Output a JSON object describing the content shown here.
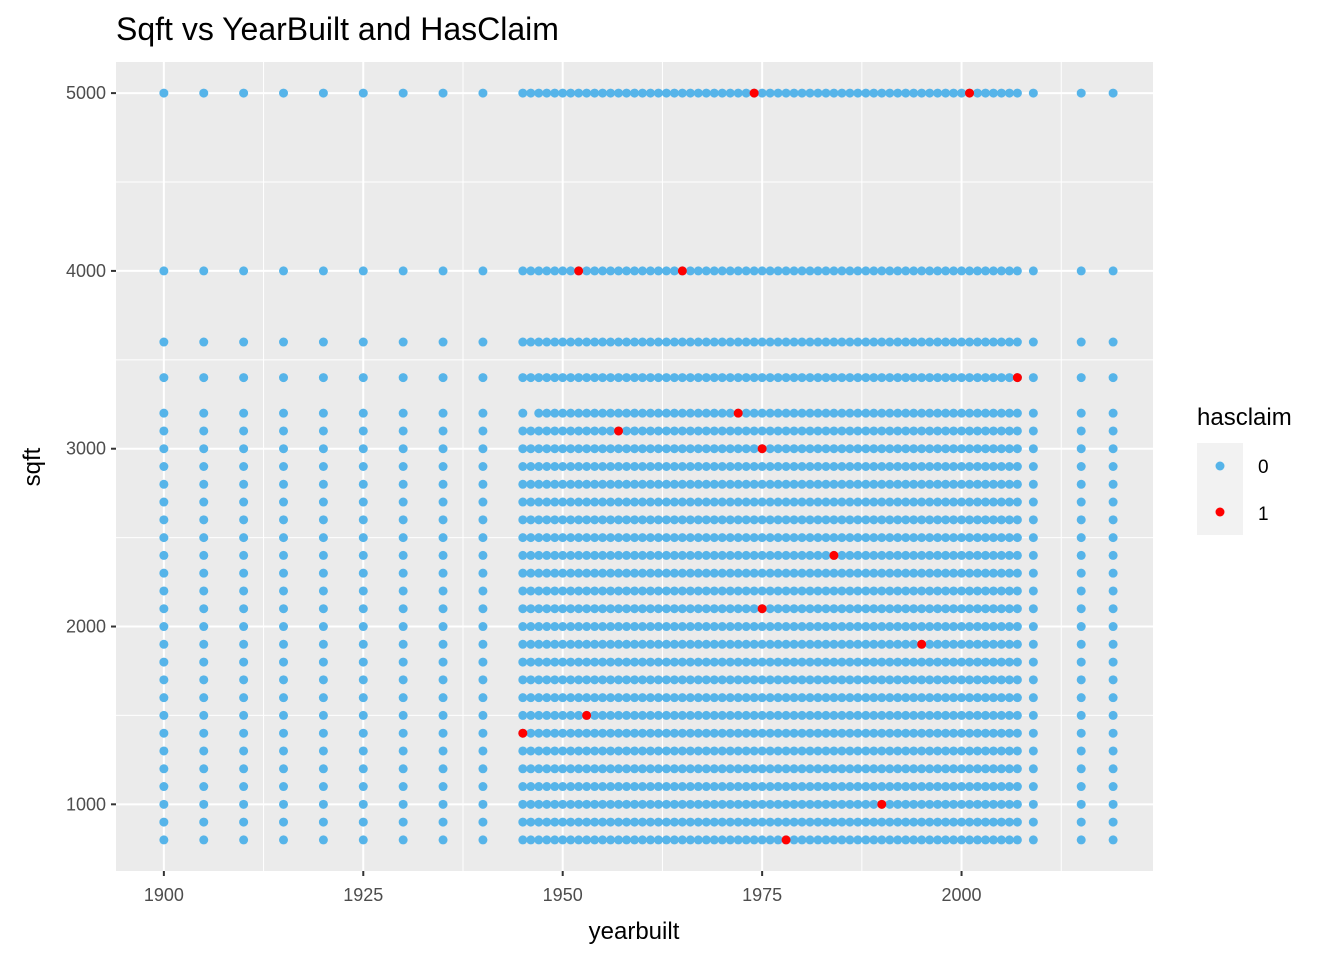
{
  "chart_data": {
    "type": "scatter",
    "title": "Sqft vs YearBuilt and HasClaim",
    "xlabel": "yearbuilt",
    "ylabel": "sqft",
    "xlim": [
      1894,
      2024
    ],
    "ylim": [
      625,
      5175
    ],
    "x_ticks": [
      1900,
      1925,
      1950,
      1975,
      2000
    ],
    "y_ticks": [
      1000,
      2000,
      3000,
      4000,
      5000
    ],
    "grid": true,
    "legend": {
      "title": "hasclaim",
      "placement": "right",
      "entries": [
        {
          "label": "0",
          "color": "#56B4E9"
        },
        {
          "label": "1",
          "color": "#FF0000"
        }
      ]
    },
    "colors": {
      "no_claim": "#56B4E9",
      "claim": "#FF0000",
      "panel": "#EBEBEB",
      "grid": "#FFFFFF"
    },
    "sparse_years": [
      1900,
      1905,
      1910,
      1915,
      1920,
      1925,
      1930,
      1935,
      1940,
      2015,
      2019
    ],
    "dense_years_range": [
      1945,
      2007
    ],
    "extra_years": [
      2009
    ],
    "sqft_levels": [
      800,
      900,
      1000,
      1100,
      1200,
      1300,
      1400,
      1500,
      1600,
      1700,
      1800,
      1900,
      2000,
      2100,
      2200,
      2300,
      2400,
      2500,
      2600,
      2700,
      2800,
      2900,
      3000,
      3100,
      3200,
      3400,
      3600,
      4000,
      5000
    ],
    "series": [
      {
        "name": "0",
        "description_level": "hasclaim = 0 (all year/sqft combinations shown as blue grid)"
      },
      {
        "name": "1",
        "points": [
          {
            "x": 1974,
            "y": 5000
          },
          {
            "x": 2001,
            "y": 5000
          },
          {
            "x": 1952,
            "y": 4000
          },
          {
            "x": 1965,
            "y": 4000
          },
          {
            "x": 2007,
            "y": 3400
          },
          {
            "x": 1972,
            "y": 3200
          },
          {
            "x": 1957,
            "y": 3100
          },
          {
            "x": 1975,
            "y": 3000
          },
          {
            "x": 1984,
            "y": 2400
          },
          {
            "x": 1975,
            "y": 2100
          },
          {
            "x": 1995,
            "y": 1900
          },
          {
            "x": 1953,
            "y": 1500
          },
          {
            "x": 1945,
            "y": 1400
          },
          {
            "x": 1990,
            "y": 1000
          },
          {
            "x": 1978,
            "y": 800
          }
        ]
      }
    ]
  }
}
